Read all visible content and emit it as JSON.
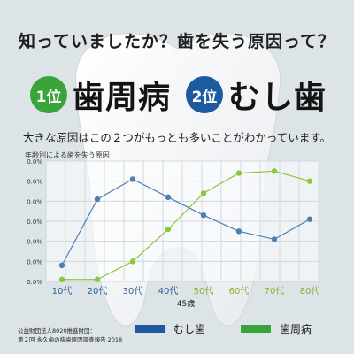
{
  "headline": "知っていましたか？歯を失う原因って？",
  "ranks": [
    {
      "badge": "1位",
      "name": "歯周病",
      "color": "#3aa43a"
    },
    {
      "badge": "2位",
      "name": "むし歯",
      "color": "#1e5aa0"
    }
  ],
  "subline": "大きな原因はこの２つがもっとも多いことがわかっています。",
  "source": {
    "line1": "公益財団法人8020推進財団：",
    "line2": "第２回 永久歯の抜歯原因調査報告 2018"
  },
  "chart_data": {
    "type": "line",
    "title": "年齢別による歯を失う原因",
    "categories": [
      "10代",
      "20代",
      "30代",
      "40代",
      "50代",
      "60代",
      "70代",
      "80代"
    ],
    "xlabel": "45歳",
    "y_tick_labels": [
      "0.0%",
      "0.0%",
      "0.0%",
      "0.0%",
      "0.0%",
      "0.0%",
      "0.0%"
    ],
    "ylim": [
      0,
      60
    ],
    "grid": true,
    "legend_position": "bottom",
    "series": [
      {
        "name": "むし歯",
        "color": "#4a80b4",
        "values": [
          8,
          41,
          51,
          42,
          33,
          25,
          21,
          31
        ]
      },
      {
        "name": "歯周病",
        "color": "#8cc63e",
        "values": [
          1,
          1,
          10,
          26,
          44,
          54,
          55,
          50
        ]
      }
    ]
  },
  "colors": {
    "legend_cavity": "#1e5aa0",
    "legend_periodontal": "#3aa43a",
    "accent_category": "#86b22e"
  }
}
